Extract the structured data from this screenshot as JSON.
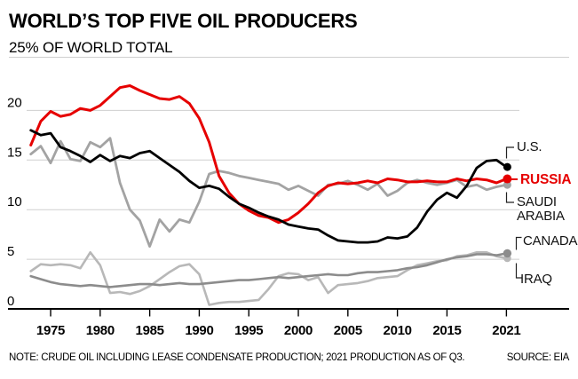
{
  "header": {
    "title": "WORLD’S TOP FIVE OIL PRODUCERS",
    "subtitle": "25% OF WORLD TOTAL"
  },
  "footer": {
    "note": "NOTE: CRUDE OIL INCLUDING LEASE CONDENSATE PRODUCTION; 2021 PRODUCTION AS OF Q3.",
    "source": "SOURCE: EIA"
  },
  "annotations": {
    "us": "U.S.",
    "russia": "RUSSIA",
    "saudi_line1": "SAUDI",
    "saudi_line2": "ARABIA",
    "canada": "CANADA",
    "iraq": "IRAQ"
  },
  "chart_data": {
    "type": "line",
    "title": "WORLD’S TOP FIVE OIL PRODUCERS",
    "ylabel": "25% OF WORLD TOTAL",
    "ylim": [
      0,
      25
    ],
    "grid": "horizontal",
    "gridline_color": "#cfcfcf",
    "axis_color": "#000000",
    "legend_position": "right-end-labels",
    "x_start": 1973,
    "x_end": 2021,
    "x_ticks": [
      1975,
      1980,
      1985,
      1990,
      1995,
      2000,
      2005,
      2010,
      2015,
      2021
    ],
    "x_tick_labels": [
      "1975",
      "1980",
      "1985",
      "1990",
      "1995",
      "2000",
      "2005",
      "2010",
      "2015",
      "2021"
    ],
    "y_ticks": [
      0,
      5,
      10,
      15,
      20
    ],
    "y_tick_labels": [
      "0",
      "5",
      "10",
      "15",
      "20"
    ],
    "x": [
      1973,
      1974,
      1975,
      1976,
      1977,
      1978,
      1979,
      1980,
      1981,
      1982,
      1983,
      1984,
      1985,
      1986,
      1987,
      1988,
      1989,
      1990,
      1991,
      1992,
      1993,
      1994,
      1995,
      1996,
      1997,
      1998,
      1999,
      2000,
      2001,
      2002,
      2003,
      2004,
      2005,
      2006,
      2007,
      2008,
      2009,
      2010,
      2011,
      2012,
      2013,
      2014,
      2015,
      2016,
      2017,
      2018,
      2019,
      2020,
      2021
    ],
    "series": [
      {
        "name": "IRAQ",
        "label": "IRAQ",
        "color": "#b8b8b8",
        "end_value": 5.1,
        "values": [
          3.8,
          4.5,
          4.4,
          4.5,
          4.4,
          4.1,
          5.7,
          4.4,
          1.6,
          1.7,
          1.5,
          1.8,
          2.3,
          3.0,
          3.7,
          4.3,
          4.5,
          3.5,
          0.4,
          0.6,
          0.7,
          0.7,
          0.8,
          0.9,
          2.0,
          3.3,
          3.6,
          3.5,
          2.9,
          3.2,
          1.6,
          2.4,
          2.5,
          2.6,
          2.8,
          3.1,
          3.2,
          3.3,
          3.9,
          4.4,
          4.6,
          4.8,
          4.9,
          5.3,
          5.4,
          5.7,
          5.7,
          5.3,
          5.1
        ]
      },
      {
        "name": "CANADA",
        "label": "CANADA",
        "color": "#8c8c8c",
        "end_value": 5.6,
        "values": [
          3.3,
          3.0,
          2.7,
          2.5,
          2.4,
          2.3,
          2.4,
          2.3,
          2.2,
          2.3,
          2.4,
          2.5,
          2.5,
          2.4,
          2.5,
          2.6,
          2.5,
          2.5,
          2.6,
          2.7,
          2.8,
          2.9,
          2.9,
          3.0,
          3.1,
          3.2,
          3.1,
          3.2,
          3.3,
          3.4,
          3.5,
          3.4,
          3.4,
          3.6,
          3.7,
          3.7,
          3.8,
          3.9,
          4.1,
          4.2,
          4.4,
          4.7,
          5.0,
          5.2,
          5.3,
          5.5,
          5.5,
          5.4,
          5.6
        ]
      },
      {
        "name": "SAUDI ARABIA",
        "label_lines": [
          "SAUDI",
          "ARABIA"
        ],
        "color": "#a3a3a3",
        "end_value": 12.5,
        "values": [
          15.6,
          16.4,
          14.7,
          16.9,
          15.1,
          14.9,
          16.8,
          16.3,
          17.2,
          12.7,
          10.0,
          8.9,
          6.3,
          9.0,
          7.8,
          9.0,
          8.7,
          10.8,
          13.6,
          13.9,
          13.7,
          13.4,
          13.2,
          13.0,
          12.8,
          12.6,
          12.0,
          12.4,
          11.9,
          11.4,
          12.5,
          12.6,
          12.9,
          12.5,
          12.0,
          12.6,
          11.4,
          11.9,
          12.7,
          13.0,
          12.7,
          12.5,
          12.7,
          13.0,
          12.3,
          12.5,
          12.0,
          12.3,
          12.5
        ]
      },
      {
        "name": "RUSSIA",
        "label": "RUSSIA",
        "color": "#e60000",
        "end_value": 13.1,
        "values": [
          16.5,
          18.9,
          19.9,
          19.4,
          19.6,
          20.2,
          20.0,
          20.5,
          21.4,
          22.3,
          22.5,
          22.0,
          21.6,
          21.2,
          21.1,
          21.4,
          20.7,
          19.2,
          16.8,
          13.4,
          11.7,
          10.6,
          9.9,
          9.4,
          9.2,
          8.7,
          9.0,
          9.7,
          10.6,
          11.7,
          12.4,
          12.7,
          12.6,
          12.7,
          12.9,
          12.7,
          13.1,
          13.0,
          12.8,
          12.8,
          12.9,
          12.8,
          12.8,
          13.1,
          12.9,
          13.1,
          13.0,
          12.7,
          13.1
        ]
      },
      {
        "name": "U.S.",
        "label": "U.S.",
        "color": "#000000",
        "end_value": 14.3,
        "values": [
          18.0,
          17.5,
          17.7,
          16.3,
          15.9,
          15.4,
          14.8,
          15.5,
          14.9,
          15.4,
          15.2,
          15.7,
          15.9,
          15.2,
          14.5,
          13.8,
          12.9,
          12.2,
          12.4,
          12.1,
          11.3,
          10.6,
          10.2,
          9.7,
          9.3,
          9.0,
          8.5,
          8.3,
          8.1,
          8.0,
          7.4,
          6.9,
          6.8,
          6.7,
          6.7,
          6.8,
          7.2,
          7.1,
          7.3,
          8.2,
          9.8,
          11.0,
          11.7,
          11.2,
          12.4,
          14.2,
          14.9,
          15.0,
          14.3
        ]
      }
    ]
  }
}
